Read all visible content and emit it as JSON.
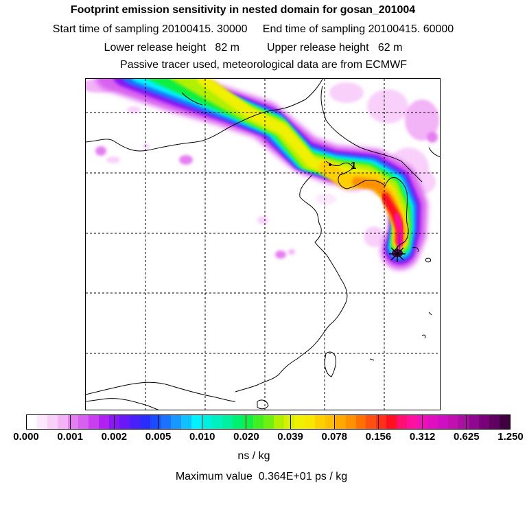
{
  "title": "Footprint emission sensitivity in nested domain for gosan_201004",
  "line_sampling": "Start time of sampling 20100415. 30000     End time of sampling 20100415. 60000",
  "line_release": "Lower release height   82 m         Upper release height   62 m",
  "line_tracer": "Passive tracer used, meteorological data are from ECMWF",
  "map": {
    "marker_label": "1",
    "receptor_marker": "star-marker"
  },
  "colorbar": {
    "tick_labels": [
      "0.000",
      "0.001",
      "0.002",
      "0.005",
      "0.010",
      "0.020",
      "0.039",
      "0.078",
      "0.156",
      "0.312",
      "0.625",
      "1.250"
    ],
    "colors": [
      "#ffffff",
      "#fde8fd",
      "#f8d0fa",
      "#f2b3f7",
      "#e57ef2",
      "#d860f0",
      "#c83ef0",
      "#b020f0",
      "#8a18f4",
      "#6a18f8",
      "#4a20fa",
      "#2a2cfc",
      "#1a4cff",
      "#1a72ff",
      "#1898ff",
      "#10c0ff",
      "#00f2ff",
      "#00f0e0",
      "#00f0c0",
      "#00f0a0",
      "#00f070",
      "#10f040",
      "#40f020",
      "#70f010",
      "#b0f000",
      "#d8f000",
      "#f0f000",
      "#f8e800",
      "#ffd000",
      "#ffc000",
      "#ffa800",
      "#ff9000",
      "#ff7000",
      "#ff5010",
      "#ff3018",
      "#ff1020",
      "#ff1070",
      "#ff10a0",
      "#f010b8",
      "#e010c0",
      "#d010c0",
      "#c010b0",
      "#a810a0",
      "#900890",
      "#780078",
      "#600060",
      "#400040"
    ],
    "unit": "ns / kg"
  },
  "max_value_text": "Maximum value  0.364E+01 ps / kg"
}
